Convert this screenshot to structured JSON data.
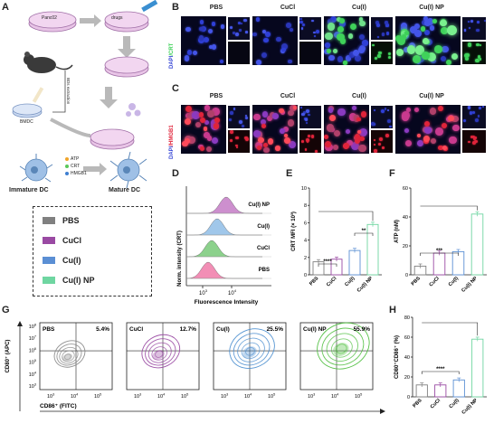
{
  "panel_a": {
    "letter": "A",
    "cell_line": "Panc02",
    "drugs_label": "drugs",
    "extraction_label": "BDs extraction",
    "bmdc_label": "BMDC",
    "signals": [
      "ATP",
      "CRT",
      "HMGB1"
    ],
    "immature_label": "Immature DC",
    "mature_label": "Mature DC",
    "legend": [
      {
        "label": "PBS",
        "color": "#808080"
      },
      {
        "label": "CuCl",
        "color": "#9a4aa3"
      },
      {
        "label": "Cu(I)",
        "color": "#5b8fd4"
      },
      {
        "label": "Cu(I) NP",
        "color": "#6fd6a1"
      }
    ]
  },
  "panel_b": {
    "letter": "B",
    "groups": [
      "PBS",
      "CuCl",
      "Cu(I)",
      "Cu(I) NP"
    ],
    "stain_label_1": "DAPI",
    "stain_label_2": "/CRT",
    "stain_color": "#3fd15a"
  },
  "panel_c": {
    "letter": "C",
    "groups": [
      "PBS",
      "CuCl",
      "Cu(I)",
      "Cu(I) NP"
    ],
    "stain_label_1": "DAPI",
    "stain_label_2": "/HMGB1",
    "stain_color": "#e0243a"
  },
  "panel_d": {
    "letter": "D",
    "ylabel": "Norm. intensity (CRT)",
    "xlabel": "Fluorescence Intensity",
    "x_ticks": [
      "10",
      "10"
    ],
    "x_tick_exps": [
      "3",
      "4"
    ],
    "tracks": [
      {
        "label": "Cu(I) NP",
        "color": "#c47bc6"
      },
      {
        "label": "Cu(I)",
        "color": "#8fbde6"
      },
      {
        "label": "CuCl",
        "color": "#78c978"
      },
      {
        "label": "PBS",
        "color": "#f07aa8"
      }
    ]
  },
  "chart_data": [
    {
      "type": "bar",
      "panel": "E",
      "categories": [
        "PBS",
        "CuCl",
        "Cu(I)",
        "Cu(I) NP"
      ],
      "values": [
        1.5,
        1.8,
        2.8,
        5.8
      ],
      "colors": [
        "#808080",
        "#9a4aa3",
        "#5b8fd4",
        "#6fd6a1"
      ],
      "ylabel": "CRT MFI (× 10³)",
      "ylim": [
        0,
        10
      ],
      "yticks": [
        "0",
        "2",
        "4",
        "6",
        "8",
        "10"
      ],
      "significance": [
        "****",
        "**"
      ]
    },
    {
      "type": "bar",
      "panel": "F",
      "categories": [
        "PBS",
        "CuCl",
        "Cu(I)",
        "Cu(I) NP"
      ],
      "values": [
        6,
        15,
        16,
        42
      ],
      "colors": [
        "#808080",
        "#9a4aa3",
        "#5b8fd4",
        "#6fd6a1"
      ],
      "ylabel": "ATP (nM)",
      "ylim": [
        0,
        60
      ],
      "yticks": [
        "0",
        "20",
        "40",
        "60"
      ],
      "significance": [
        "***"
      ]
    },
    {
      "type": "bar",
      "panel": "H",
      "categories": [
        "PBS",
        "CuCl",
        "Cu(I)",
        "Cu(I) NP"
      ],
      "values": [
        12,
        12,
        17,
        58
      ],
      "colors": [
        "#808080",
        "#9a4aa3",
        "#5b8fd4",
        "#6fd6a1"
      ],
      "ylabel": "CD80⁺CD86⁺ (%)",
      "ylim": [
        0,
        80
      ],
      "yticks": [
        "0",
        "20",
        "40",
        "60",
        "80"
      ],
      "significance": [
        "****"
      ]
    }
  ],
  "panel_e": {
    "letter": "E"
  },
  "panel_f": {
    "letter": "F"
  },
  "panel_h": {
    "letter": "H"
  },
  "panel_g": {
    "letter": "G",
    "ylabel": "CD80⁺ (APC)",
    "xlabel": "CD86⁺ (FITC)",
    "y_ticks": [
      "10",
      "10",
      "10",
      "10",
      "10",
      "10"
    ],
    "y_tick_exps": [
      "8",
      "7",
      "6",
      "5",
      "4",
      "3"
    ],
    "x_ticks": [
      "10",
      "10",
      "10"
    ],
    "x_tick_exps": [
      "3",
      "4",
      "5"
    ],
    "plots": [
      {
        "group": "PBS",
        "percent": "5.4%",
        "color": "#8a8a8a"
      },
      {
        "group": "CuCl",
        "percent": "12.7%",
        "color": "#9a4aa3"
      },
      {
        "group": "Cu(I)",
        "percent": "25.5%",
        "color": "#4d8fd0"
      },
      {
        "group": "Cu(I) NP",
        "percent": "55.9%",
        "color": "#4fbf3f"
      }
    ]
  }
}
